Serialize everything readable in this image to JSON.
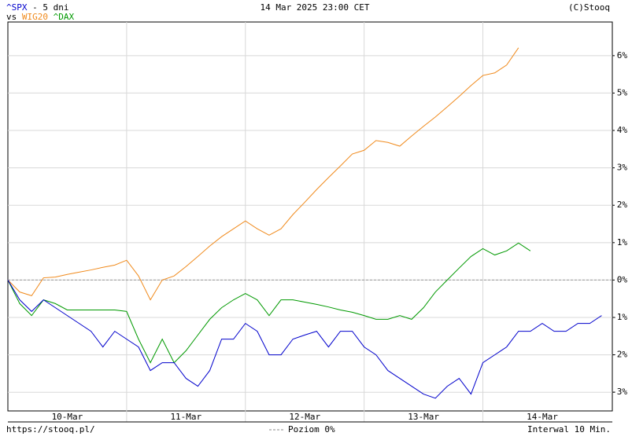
{
  "chart_data": {
    "type": "line",
    "title": "14 Mar 2025 23:00 CET",
    "source": "(C)Stooq",
    "period": "- 5 dni",
    "vs_label": "vs",
    "url": "https://stooq.pl/",
    "reference_label": "Poziom 0%",
    "reference_line": 0,
    "interval": "Interwal 10 Min.",
    "grid": true,
    "x": [
      0,
      0.1,
      0.2,
      0.3,
      0.4,
      0.5,
      0.6,
      0.7,
      0.8,
      0.9,
      1,
      1.1,
      1.2,
      1.3,
      1.4,
      1.5,
      1.6,
      1.7,
      1.8,
      1.9,
      2,
      2.1,
      2.2,
      2.3,
      2.4,
      2.5,
      2.6,
      2.7,
      2.8,
      2.9,
      3,
      3.1,
      3.2,
      3.3,
      3.4,
      3.5,
      3.6,
      3.7,
      3.8,
      3.9,
      4,
      4.1,
      4.2,
      4.3,
      4.4,
      4.5,
      4.6,
      4.7,
      4.8,
      4.9,
      5
    ],
    "xlim": [
      0,
      5.09
    ],
    "xgrid": [
      1,
      2,
      3,
      4
    ],
    "xticks": [
      {
        "value": 0.5,
        "label": "10-Mar"
      },
      {
        "value": 1.5,
        "label": "11-Mar"
      },
      {
        "value": 2.5,
        "label": "12-Mar"
      },
      {
        "value": 3.5,
        "label": "13-Mar"
      },
      {
        "value": 4.5,
        "label": "14-Mar"
      }
    ],
    "ylim": [
      -3.5,
      6.9
    ],
    "yticks": [
      {
        "value": -3,
        "label": "-3%"
      },
      {
        "value": -2,
        "label": "-2%"
      },
      {
        "value": -1,
        "label": "-1%"
      },
      {
        "value": 0,
        "label": "0%"
      },
      {
        "value": 1,
        "label": "1%"
      },
      {
        "value": 2,
        "label": "2%"
      },
      {
        "value": 3,
        "label": "3%"
      },
      {
        "value": 4,
        "label": "4%"
      },
      {
        "value": 5,
        "label": "5%"
      },
      {
        "value": 6,
        "label": "6%"
      }
    ],
    "series": [
      {
        "name": "^SPX",
        "color": "#0000cc",
        "values": [
          0,
          -0.53,
          -0.84,
          -0.53,
          -0.74,
          -0.95,
          -1.16,
          -1.37,
          -1.79,
          -1.37,
          -1.58,
          -1.79,
          -2.42,
          -2.21,
          -2.21,
          -2.63,
          -2.84,
          -2.42,
          -1.58,
          -1.58,
          -1.16,
          -1.37,
          -2.0,
          -2.0,
          -1.58,
          -1.47,
          -1.37,
          -1.79,
          -1.37,
          -1.37,
          -1.79,
          -2.0,
          -2.42,
          -2.63,
          -2.84,
          -3.05,
          -3.16,
          -2.84,
          -2.63,
          -3.05,
          -2.21,
          -2.0,
          -1.79,
          -1.37,
          -1.37,
          -1.16,
          -1.37,
          -1.37,
          -1.16,
          -1.16,
          -0.95
        ]
      },
      {
        "name": "WIG20",
        "color": "#f08a1c",
        "values": [
          0,
          -0.32,
          -0.42,
          0.06,
          0.08,
          0.15,
          0.21,
          0.27,
          0.34,
          0.4,
          0.53,
          0.11,
          -0.53,
          0,
          0.11,
          0.36,
          0.63,
          0.91,
          1.16,
          1.37,
          1.58,
          1.37,
          1.2,
          1.37,
          1.75,
          2.08,
          2.42,
          2.74,
          3.05,
          3.37,
          3.47,
          3.73,
          3.68,
          3.58,
          3.85,
          4.11,
          4.36,
          4.63,
          4.91,
          5.2,
          5.47,
          5.54,
          5.75,
          6.21,
          null,
          null,
          null,
          null,
          null,
          null,
          null
        ]
      },
      {
        "name": "^DAX",
        "color": "#009900",
        "values": [
          0,
          -0.63,
          -0.95,
          -0.53,
          -0.63,
          -0.8,
          -0.8,
          -0.8,
          -0.8,
          -0.8,
          -0.84,
          -1.58,
          -2.21,
          -1.58,
          -2.21,
          -1.89,
          -1.47,
          -1.05,
          -0.74,
          -0.53,
          -0.36,
          -0.53,
          -0.95,
          -0.53,
          -0.53,
          -0.59,
          -0.65,
          -0.72,
          -0.8,
          -0.86,
          -0.95,
          -1.05,
          -1.05,
          -0.95,
          -1.05,
          -0.74,
          -0.32,
          0,
          0.32,
          0.63,
          0.84,
          0.67,
          0.78,
          0.99,
          0.78,
          null,
          null,
          null,
          null,
          null,
          null
        ]
      }
    ]
  }
}
